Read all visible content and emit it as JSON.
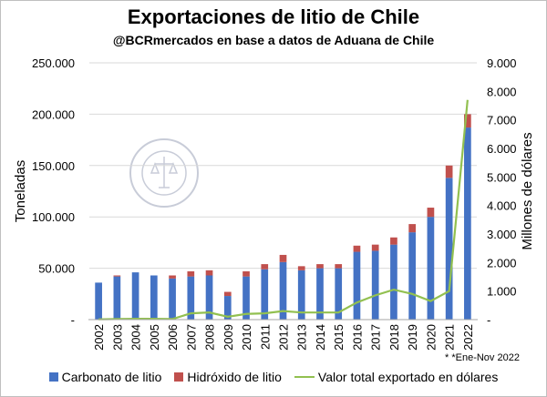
{
  "title": "Exportaciones de litio de Chile",
  "subtitle": "@BCRmercados en base a datos de Aduana de Chile",
  "footnote": "* *Ene-Nov 2022",
  "seal_text": "BOLSA DE COMERCIO DE ROSARIO",
  "colors": {
    "carbonato": "#4472C4",
    "hidroxido": "#C0504D",
    "valor": "#92C050",
    "grid": "#d9d9d9"
  },
  "chart_data": {
    "type": "bar",
    "stacked": true,
    "categories": [
      "2002",
      "2003",
      "2004",
      "2005",
      "2006",
      "2007",
      "2008",
      "2009",
      "2010",
      "2011",
      "2012",
      "2013",
      "2014",
      "2015",
      "2016",
      "2017",
      "2018",
      "2019",
      "2020",
      "2021",
      "2022"
    ],
    "series": [
      {
        "name": "Carbonato de litio",
        "axis": "left",
        "values": [
          36000,
          42000,
          46000,
          43000,
          40000,
          42000,
          43000,
          23000,
          42000,
          49000,
          56000,
          48000,
          50000,
          50000,
          66000,
          67000,
          73000,
          85000,
          100000,
          138000,
          187000
        ]
      },
      {
        "name": "Hidróxido de litio",
        "axis": "left",
        "values": [
          0,
          1000,
          0,
          0,
          3000,
          5000,
          5000,
          4000,
          5000,
          5000,
          7000,
          4000,
          4000,
          4000,
          6000,
          6000,
          7000,
          8000,
          9000,
          12000,
          13000
        ]
      },
      {
        "name": "Valor total exportado en dólares",
        "type": "line",
        "axis": "right",
        "values": [
          10,
          20,
          30,
          30,
          20,
          220,
          250,
          100,
          200,
          220,
          300,
          250,
          250,
          250,
          600,
          850,
          1050,
          900,
          650,
          1000,
          7700
        ]
      }
    ],
    "ylabel": "Toneladas",
    "ylabel_right": "Millones de dólares",
    "ylim": [
      0,
      250000
    ],
    "ylim_right": [
      0,
      9000
    ],
    "yticks": [
      "-",
      "50.000",
      "100.000",
      "150.000",
      "200.000",
      "250.000"
    ],
    "yticks_right": [
      "-",
      "1.000",
      "2.000",
      "3.000",
      "4.000",
      "5.000",
      "6.000",
      "7.000",
      "8.000",
      "9.000"
    ],
    "grid": true,
    "legend_position": "bottom"
  }
}
